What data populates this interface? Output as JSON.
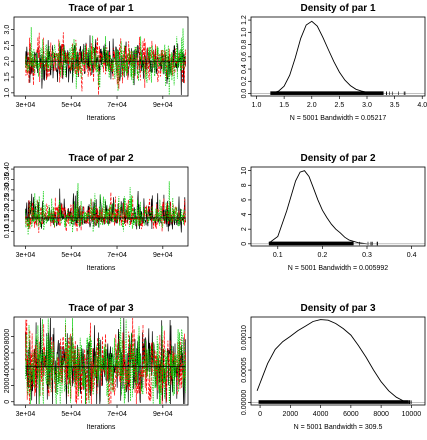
{
  "figure": {
    "background": "#ffffff"
  },
  "chart_data": [
    {
      "type": "line",
      "subtype": "mcmc-trace",
      "title": "Trace of par 1",
      "xlabel": "Iterations",
      "xlim": [
        25000,
        101000
      ],
      "ylim": [
        0.9,
        3.4
      ],
      "xticks": [
        30000,
        50000,
        70000,
        90000
      ],
      "xtick_labels": [
        "3e+04",
        "5e+04",
        "7e+04",
        "9e+04"
      ],
      "yticks": [
        1.0,
        1.5,
        2.0,
        2.5,
        3.0
      ],
      "ytick_labels": [
        "1.0",
        "1.5",
        "2.0",
        "2.5",
        "3.0"
      ],
      "chains": [
        {
          "color": "#000000",
          "mean": 2.0,
          "sd": 0.33
        },
        {
          "color": "#ff0000",
          "mean": 2.0,
          "sd": 0.33
        },
        {
          "color": "#00cd00",
          "mean": 2.0,
          "sd": 0.33
        }
      ],
      "x_start": 30000,
      "x_end": 100000,
      "hline": 2.0
    },
    {
      "type": "line",
      "subtype": "density",
      "title": "Density of par 1",
      "xlabel": "N = 5001   Bandwidth = 0.05217",
      "xlim": [
        0.9,
        4.05
      ],
      "ylim": [
        -0.04,
        1.25
      ],
      "xticks": [
        1.0,
        1.5,
        2.0,
        2.5,
        3.0,
        3.5,
        4.0
      ],
      "xtick_labels": [
        "1.0",
        "1.5",
        "2.0",
        "2.5",
        "3.0",
        "3.5",
        "4.0"
      ],
      "yticks": [
        0.0,
        0.2,
        0.4,
        0.6,
        0.8,
        1.0,
        1.2
      ],
      "ytick_labels": [
        "0.0",
        "0.2",
        "0.4",
        "0.6",
        "0.8",
        "1.0",
        "1.2"
      ],
      "x": [
        1.3,
        1.4,
        1.5,
        1.6,
        1.7,
        1.8,
        1.9,
        2.0,
        2.1,
        2.2,
        2.3,
        2.4,
        2.5,
        2.6,
        2.7,
        2.8,
        2.9,
        3.0,
        3.1,
        3.2
      ],
      "y": [
        0.01,
        0.04,
        0.12,
        0.3,
        0.58,
        0.9,
        1.12,
        1.18,
        1.1,
        0.92,
        0.72,
        0.52,
        0.35,
        0.22,
        0.13,
        0.07,
        0.04,
        0.02,
        0.01,
        0.0
      ],
      "rug": [
        1.25,
        3.3
      ],
      "rug_tail": [
        3.3,
        3.75
      ]
    },
    {
      "type": "line",
      "subtype": "mcmc-trace",
      "title": "Trace of par 2",
      "xlabel": "Iterations",
      "xlim": [
        25000,
        101000
      ],
      "ylim": [
        0.03,
        0.41
      ],
      "xticks": [
        30000,
        50000,
        70000,
        90000
      ],
      "xtick_labels": [
        "3e+04",
        "5e+04",
        "7e+04",
        "9e+04"
      ],
      "yticks": [
        0.1,
        0.15,
        0.2,
        0.25,
        0.3,
        0.35,
        0.4
      ],
      "ytick_labels": [
        "0.10",
        "0.15",
        "0.20",
        "0.25",
        "0.30",
        "0.35",
        "0.40"
      ],
      "chains": [
        {
          "color": "#000000",
          "mean": 0.165,
          "sd": 0.045
        },
        {
          "color": "#ff0000",
          "mean": 0.165,
          "sd": 0.045
        },
        {
          "color": "#00cd00",
          "mean": 0.165,
          "sd": 0.045
        }
      ],
      "x_start": 30000,
      "x_end": 100000,
      "hline": 0.165
    },
    {
      "type": "line",
      "subtype": "density",
      "title": "Density of par 2",
      "xlabel": "N = 5001   Bandwidth = 0.005992",
      "xlim": [
        0.04,
        0.43
      ],
      "ylim": [
        -0.3,
        10.5
      ],
      "xticks": [
        0.1,
        0.2,
        0.3,
        0.4
      ],
      "xtick_labels": [
        "0.1",
        "0.2",
        "0.3",
        "0.4"
      ],
      "yticks": [
        0,
        2,
        4,
        6,
        8,
        10
      ],
      "ytick_labels": [
        "0",
        "2",
        "4",
        "6",
        "8",
        "10"
      ],
      "x": [
        0.08,
        0.1,
        0.12,
        0.14,
        0.15,
        0.16,
        0.17,
        0.18,
        0.19,
        0.2,
        0.21,
        0.22,
        0.23,
        0.24,
        0.25,
        0.26,
        0.28,
        0.3
      ],
      "y": [
        0.1,
        1.0,
        4.5,
        8.6,
        9.8,
        10.0,
        9.2,
        7.6,
        6.0,
        4.6,
        3.6,
        2.7,
        2.0,
        1.5,
        0.9,
        0.5,
        0.15,
        0.0
      ],
      "rug": [
        0.08,
        0.27
      ],
      "rug_tail": [
        0.27,
        0.33
      ]
    },
    {
      "type": "line",
      "subtype": "mcmc-trace",
      "title": "Trace of par 3",
      "xlabel": "Iterations",
      "xlim": [
        25000,
        101000
      ],
      "ylim": [
        -400,
        10400
      ],
      "xticks": [
        30000,
        50000,
        70000,
        90000
      ],
      "xtick_labels": [
        "3e+04",
        "5e+04",
        "7e+04",
        "9e+04"
      ],
      "yticks": [
        0,
        2000,
        4000,
        6000,
        8000
      ],
      "ytick_labels": [
        "0",
        "2000",
        "4000",
        "6000",
        "8000"
      ],
      "chains": [
        {
          "color": "#000000",
          "mean": 4300,
          "sd": 2400
        },
        {
          "color": "#ff0000",
          "mean": 4300,
          "sd": 2400
        },
        {
          "color": "#00cd00",
          "mean": 4300,
          "sd": 2400
        }
      ],
      "x_start": 30000,
      "x_end": 100000,
      "hline": 4300
    },
    {
      "type": "line",
      "subtype": "density",
      "title": "Density of par 3",
      "xlabel": "N = 5001   Bandwidth = 309.5",
      "xlim": [
        -600,
        10900
      ],
      "ylim": [
        -4e-06,
        0.000132
      ],
      "xticks": [
        0,
        2000,
        4000,
        6000,
        8000,
        10000
      ],
      "xtick_labels": [
        "0",
        "2000",
        "4000",
        "6000",
        "8000",
        "10000"
      ],
      "yticks": [
        0.0,
        5e-05,
        0.0001
      ],
      "ytick_labels": [
        "0.00000",
        "0.00005",
        "0.00010"
      ],
      "x": [
        -200,
        0,
        200,
        500,
        1000,
        1500,
        2000,
        2500,
        3000,
        3500,
        4000,
        4500,
        5000,
        5500,
        6000,
        6500,
        7000,
        7500,
        8000,
        8500,
        9000,
        9500,
        9800
      ],
      "y": [
        1.8e-05,
        3e-05,
        4.2e-05,
        6e-05,
        8.2e-05,
        9.4e-05,
        0.000102,
        0.000111,
        0.000118,
        0.000125,
        0.000128,
        0.000127,
        0.000122,
        0.000114,
        0.000104,
        8.8e-05,
        7e-05,
        5e-05,
        3.2e-05,
        1.8e-05,
        8e-06,
        2e-06,
        0.0
      ],
      "rug": [
        -100,
        9800
      ],
      "rug_tail": [
        9800,
        10000
      ]
    }
  ]
}
